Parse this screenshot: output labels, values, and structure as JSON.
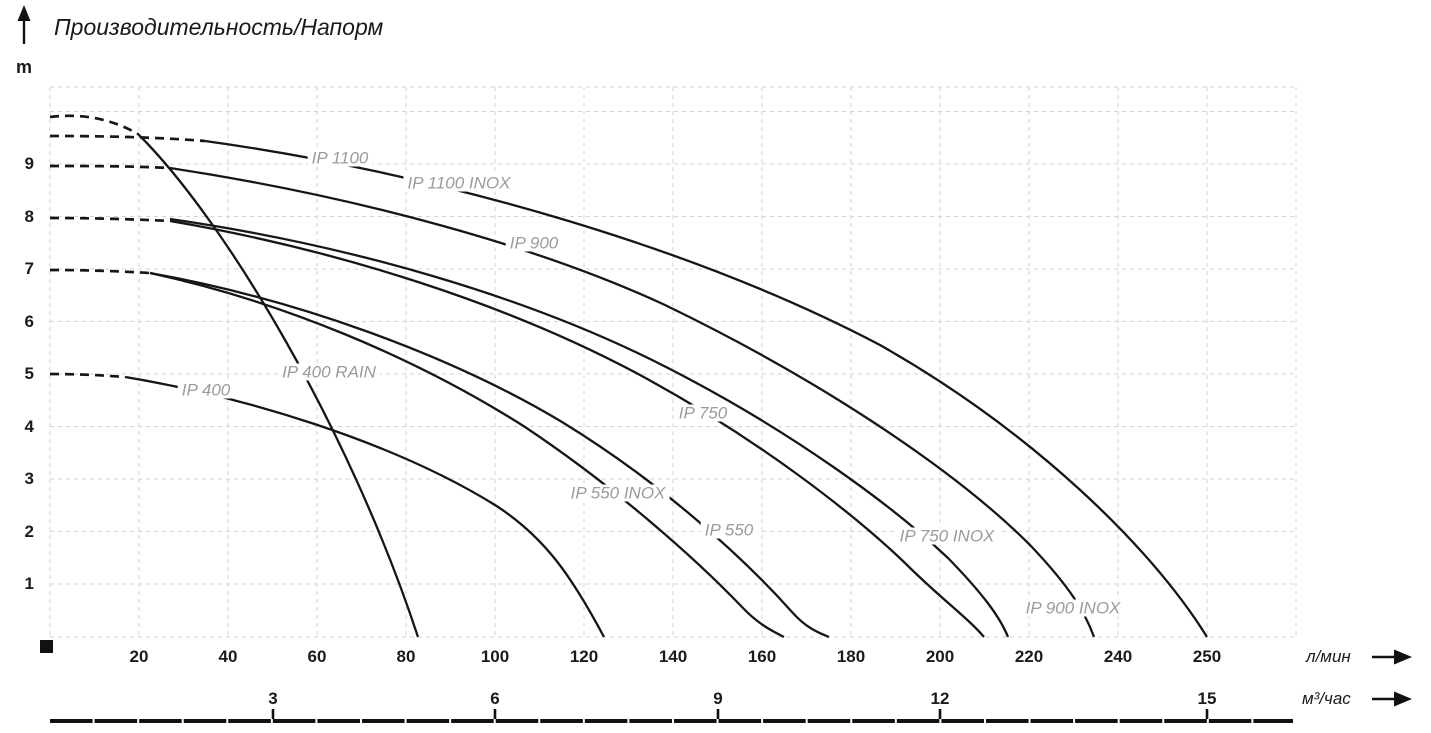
{
  "header": {
    "title": "Производительность/Напорм",
    "y_unit": "m"
  },
  "axes": {
    "y_ticks": [
      "9",
      "8",
      "7",
      "6",
      "5",
      "4",
      "3",
      "2",
      "1"
    ],
    "x_lmin_ticks": [
      "20",
      "40",
      "60",
      "80",
      "100",
      "120",
      "140",
      "160",
      "180",
      "200",
      "220",
      "240",
      "250"
    ],
    "x_m3_ticks": [
      "3",
      "6",
      "9",
      "12",
      "15"
    ],
    "x_unit_primary": "л/мин",
    "x_unit_secondary": "м³/час"
  },
  "curve_labels": [
    {
      "id": "ip1100",
      "text": "IP 1100"
    },
    {
      "id": "ip1100inox",
      "text": "IP 1100 INOX"
    },
    {
      "id": "ip900",
      "text": "IP 900"
    },
    {
      "id": "ip400rain",
      "text": "IP 400 RAIN"
    },
    {
      "id": "ip400",
      "text": "IP 400"
    },
    {
      "id": "ip750",
      "text": "IP 750"
    },
    {
      "id": "ip550inox",
      "text": "IP 550 INOX"
    },
    {
      "id": "ip550",
      "text": "IP 550"
    },
    {
      "id": "ip750inox",
      "text": "IP 750 INOX"
    },
    {
      "id": "ip900inox",
      "text": "IP 900 INOX"
    }
  ],
  "colors": {
    "curve": "#161616",
    "curve_label": "#9b9b9b",
    "grid": "#d3d3d3",
    "text": "#1b1b1b",
    "background": "#ffffff"
  },
  "chart_data": {
    "type": "line",
    "title": "Производительность/Напорм",
    "ylabel": "m",
    "xlabel_primary": "л/мин",
    "xlabel_secondary": "м³/час",
    "ylim": [
      0,
      10.5
    ],
    "xlim": [
      0,
      260
    ],
    "x_secondary_ticks": [
      3,
      6,
      9,
      12,
      15
    ],
    "grid": true,
    "legend_position": "labels-on-curves",
    "series": [
      {
        "name": "IP 400 RAIN",
        "dashed_until_lmin": 20,
        "points_lmin_m": [
          [
            0,
            9.9
          ],
          [
            20,
            9.55
          ],
          [
            40,
            7.8
          ],
          [
            60,
            5.4
          ],
          [
            80,
            0.9
          ],
          [
            82,
            0
          ]
        ]
      },
      {
        "name": "IP 400",
        "dashed_until_lmin": 17,
        "points_lmin_m": [
          [
            0,
            5.0
          ],
          [
            20,
            4.9
          ],
          [
            40,
            4.6
          ],
          [
            60,
            4.0
          ],
          [
            80,
            3.4
          ],
          [
            100,
            2.4
          ],
          [
            110,
            1.6
          ],
          [
            120,
            0.6
          ],
          [
            124,
            0
          ]
        ]
      },
      {
        "name": "IP 550",
        "dashed_until_lmin": 22,
        "points_lmin_m": [
          [
            0,
            7.0
          ],
          [
            20,
            6.95
          ],
          [
            40,
            6.6
          ],
          [
            60,
            6.2
          ],
          [
            80,
            5.6
          ],
          [
            100,
            4.8
          ],
          [
            120,
            3.8
          ],
          [
            140,
            2.7
          ],
          [
            160,
            1.2
          ],
          [
            174,
            0
          ]
        ]
      },
      {
        "name": "IP 550 INOX",
        "dashed_until_lmin": 22,
        "points_lmin_m": [
          [
            0,
            7.0
          ],
          [
            20,
            6.9
          ],
          [
            40,
            6.5
          ],
          [
            60,
            6.1
          ],
          [
            80,
            5.4
          ],
          [
            100,
            4.6
          ],
          [
            120,
            3.5
          ],
          [
            140,
            2.3
          ],
          [
            160,
            0.6
          ],
          [
            164,
            0
          ]
        ]
      },
      {
        "name": "IP 750",
        "dashed_until_lmin": 26,
        "points_lmin_m": [
          [
            0,
            8.0
          ],
          [
            20,
            7.95
          ],
          [
            40,
            7.6
          ],
          [
            60,
            6.9
          ],
          [
            80,
            6.4
          ],
          [
            100,
            5.75
          ],
          [
            120,
            4.9
          ],
          [
            140,
            4.3
          ],
          [
            160,
            3.2
          ],
          [
            180,
            2.0
          ],
          [
            200,
            0.8
          ],
          [
            209,
            0
          ]
        ]
      },
      {
        "name": "IP 750 INOX",
        "dashed_until_lmin": 26,
        "points_lmin_m": [
          [
            0,
            8.0
          ],
          [
            20,
            7.95
          ],
          [
            40,
            7.65
          ],
          [
            60,
            7.0
          ],
          [
            80,
            6.5
          ],
          [
            100,
            5.9
          ],
          [
            120,
            5.1
          ],
          [
            140,
            4.5
          ],
          [
            160,
            3.5
          ],
          [
            180,
            2.4
          ],
          [
            200,
            1.2
          ],
          [
            215,
            0
          ]
        ]
      },
      {
        "name": "IP 900",
        "dashed_until_lmin": 26,
        "points_lmin_m": [
          [
            0,
            9.0
          ],
          [
            20,
            8.95
          ],
          [
            40,
            8.7
          ],
          [
            60,
            8.5
          ],
          [
            80,
            8.2
          ],
          [
            100,
            7.8
          ],
          [
            120,
            7.1
          ],
          [
            140,
            6.4
          ],
          [
            160,
            5.6
          ],
          [
            180,
            4.5
          ],
          [
            200,
            3.0
          ],
          [
            220,
            1.75
          ],
          [
            234,
            0
          ]
        ]
      },
      {
        "name": "IP 900 INOX",
        "dashed_until_lmin": 26,
        "points_lmin_m": [
          [
            0,
            9.0
          ],
          [
            20,
            8.95
          ],
          [
            40,
            8.7
          ],
          [
            60,
            8.5
          ],
          [
            80,
            8.2
          ],
          [
            100,
            7.8
          ],
          [
            120,
            7.1
          ],
          [
            140,
            6.4
          ],
          [
            160,
            5.6
          ],
          [
            180,
            4.5
          ],
          [
            200,
            3.0
          ],
          [
            220,
            1.75
          ],
          [
            234,
            0
          ]
        ]
      },
      {
        "name": "IP 1100",
        "dashed_until_lmin": 34,
        "points_lmin_m": [
          [
            0,
            9.55
          ],
          [
            20,
            9.5
          ],
          [
            40,
            9.3
          ],
          [
            60,
            9.1
          ],
          [
            80,
            8.9
          ],
          [
            100,
            8.5
          ],
          [
            120,
            8.1
          ],
          [
            140,
            7.6
          ],
          [
            160,
            7.0
          ],
          [
            180,
            6.1
          ],
          [
            200,
            5.0
          ],
          [
            220,
            3.7
          ],
          [
            240,
            1.9
          ],
          [
            250,
            0
          ]
        ]
      },
      {
        "name": "IP 1100 INOX",
        "dashed_until_lmin": 34,
        "points_lmin_m": [
          [
            0,
            9.55
          ],
          [
            20,
            9.5
          ],
          [
            40,
            9.3
          ],
          [
            60,
            9.1
          ],
          [
            80,
            8.9
          ],
          [
            100,
            8.5
          ],
          [
            120,
            8.1
          ],
          [
            140,
            7.6
          ],
          [
            160,
            7.0
          ],
          [
            180,
            6.1
          ],
          [
            200,
            5.0
          ],
          [
            220,
            3.7
          ],
          [
            240,
            1.9
          ],
          [
            250,
            0
          ]
        ]
      }
    ]
  }
}
